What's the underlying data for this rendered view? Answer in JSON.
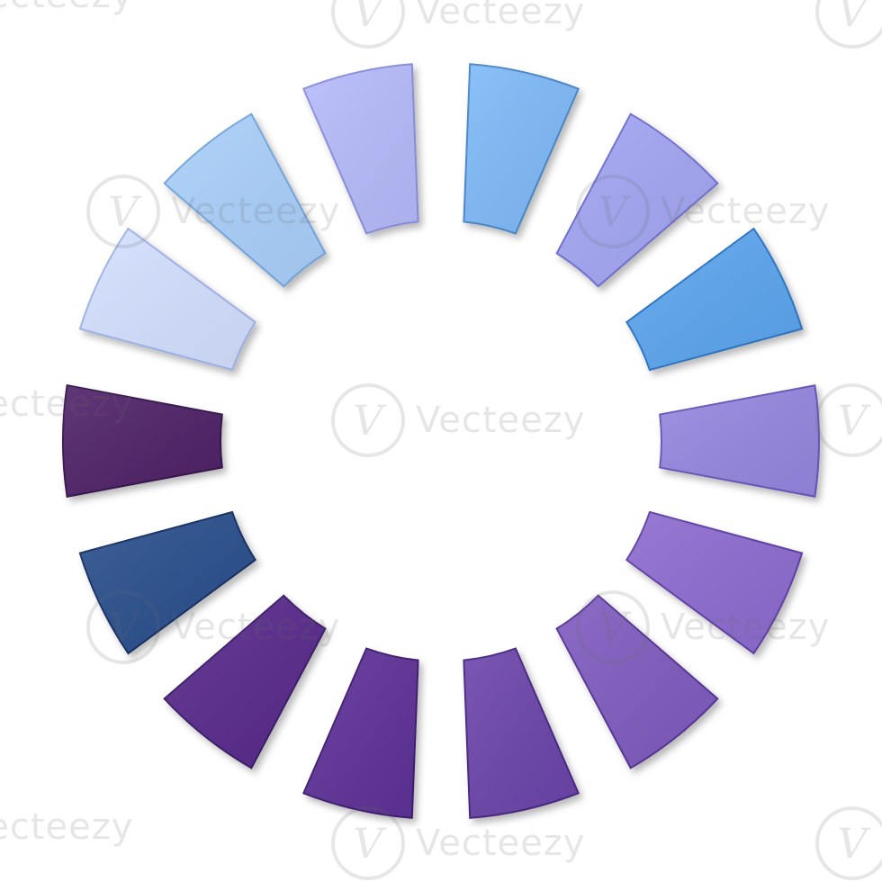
{
  "diagram": {
    "type": "segmented-ring",
    "segment_count": 14,
    "segments": [
      {
        "color": "#7fbaf8",
        "edge": "#4a86c8"
      },
      {
        "color": "#a3a6f3",
        "edge": "#6f6fd0"
      },
      {
        "color": "#5ba6ef",
        "edge": "#2f75c4"
      },
      {
        "color": "#9587e0",
        "edge": "#6a55b8"
      },
      {
        "color": "#8d6cd0",
        "edge": "#5f3fa6"
      },
      {
        "color": "#7f5cbf",
        "edge": "#553594"
      },
      {
        "color": "#6c45aa",
        "edge": "#472682"
      },
      {
        "color": "#5e3398",
        "edge": "#3f1f72"
      },
      {
        "color": "#582c8c",
        "edge": "#3a1a68"
      },
      {
        "color": "#2b4f8d",
        "edge": "#142f62"
      },
      {
        "color": "#4f2468",
        "edge": "#35124b"
      },
      {
        "color": "#d3e0ff",
        "edge": "#9fb3e6"
      },
      {
        "color": "#aad0fb",
        "edge": "#74a6de"
      },
      {
        "color": "#b6bbfb",
        "edge": "#8a8fdc"
      }
    ]
  },
  "watermark": {
    "brand": "Vecteezy",
    "logo_glyph": "V"
  }
}
